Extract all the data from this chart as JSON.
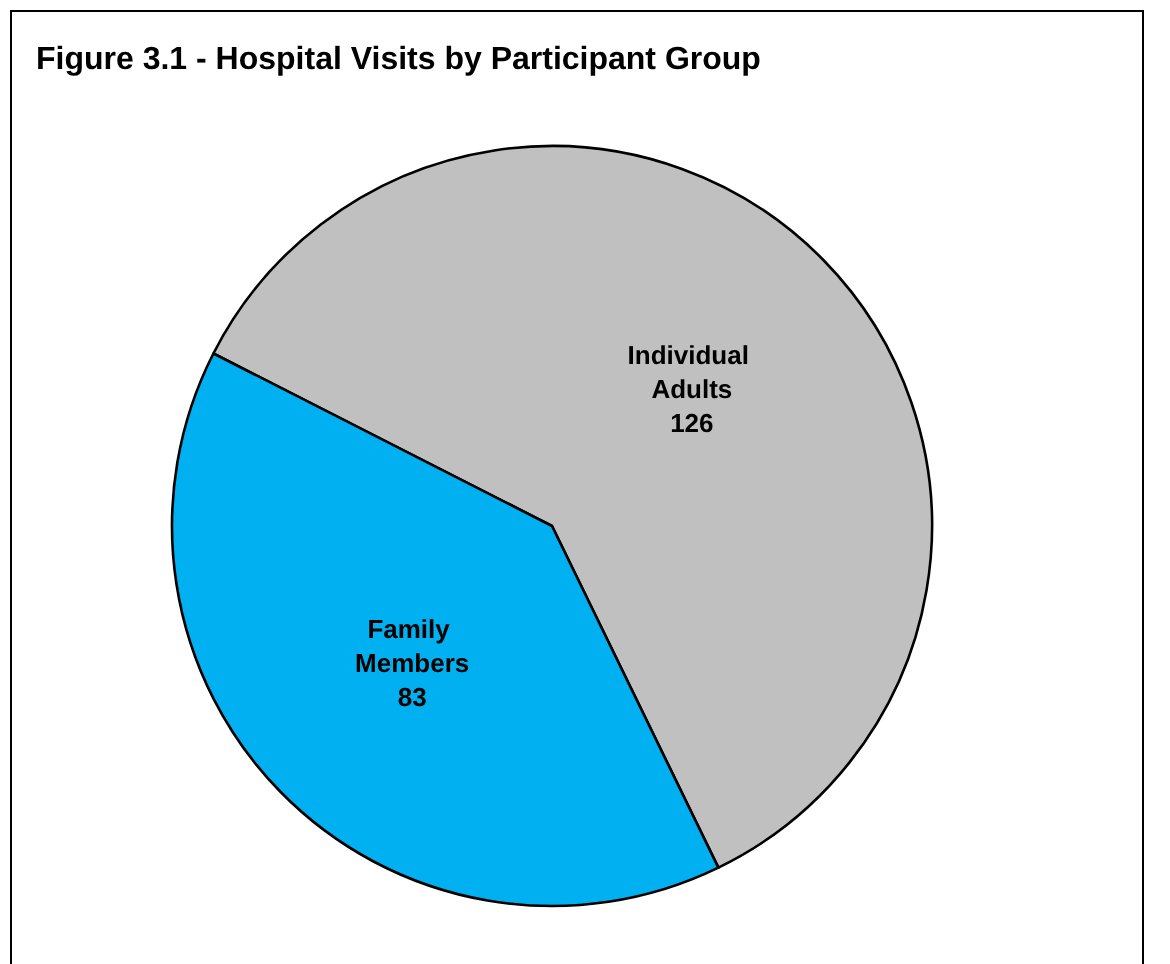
{
  "chart_data": {
    "type": "pie",
    "title": "Figure 3.1 - Hospital Visits by Participant Group",
    "categories": [
      "Individual Adults",
      "Family Members"
    ],
    "values": [
      126,
      83
    ],
    "colors": [
      "#c0c0c0",
      "#00b0f0"
    ],
    "data_labels": true,
    "legend": false
  }
}
